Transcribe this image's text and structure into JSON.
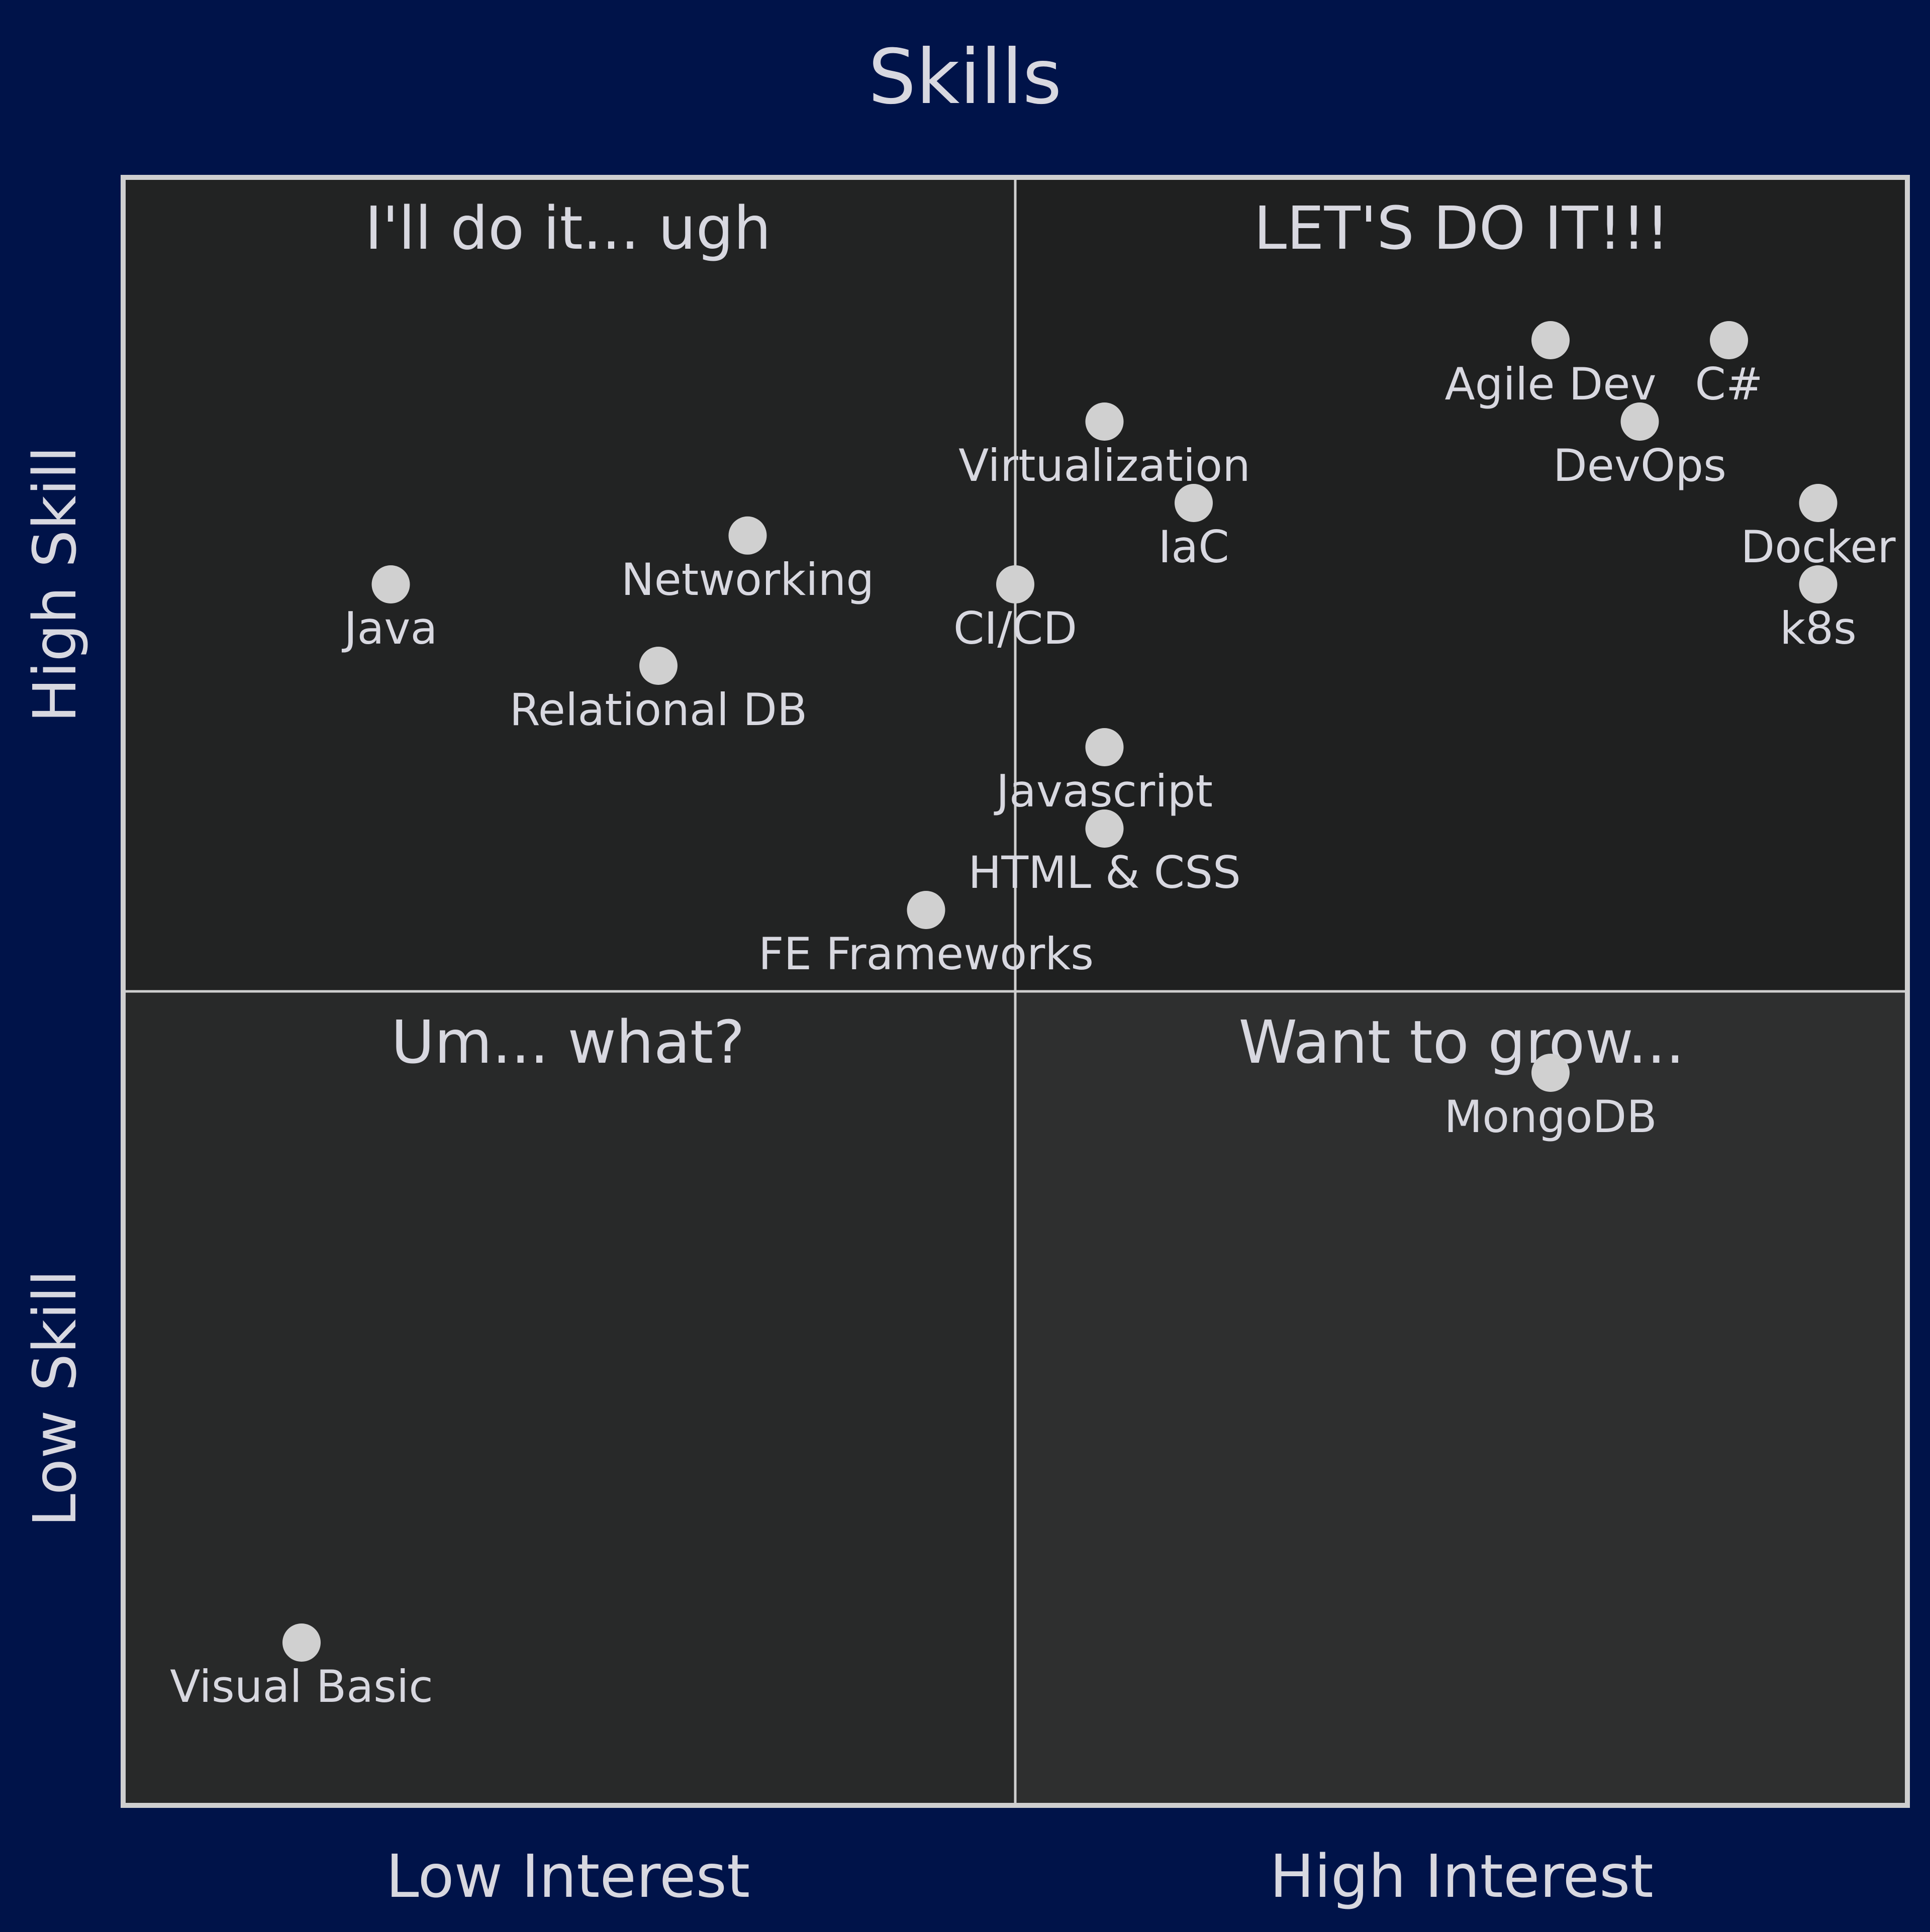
{
  "colors": {
    "background": "#001349",
    "frame": "#cfcfcf",
    "point": "#d0d0d0",
    "text": "#d8d8e0",
    "quadrant_top_left": "#222323",
    "quadrant_top_right": "#1f2020",
    "quadrant_bottom_left": "#282929",
    "quadrant_bottom_right": "#2e2f2f"
  },
  "chart_data": {
    "type": "scatter",
    "title": "Skills",
    "xlabel_low": "Low Interest",
    "xlabel_high": "High Interest",
    "ylabel_low": "Low Skill",
    "ylabel_high": "High Skill",
    "xlim": [
      0,
      10
    ],
    "ylim": [
      0,
      10
    ],
    "grid": false,
    "quadrants": {
      "top_left": "I'll do it... ugh",
      "top_right": "LET'S DO IT!!!",
      "bottom_left": "Um... what?",
      "bottom_right": "Want to grow..."
    },
    "points": [
      {
        "label": "Agile Dev",
        "x": 8.0,
        "y": 9.0
      },
      {
        "label": "C#",
        "x": 9.0,
        "y": 9.0
      },
      {
        "label": "DevOps",
        "x": 8.5,
        "y": 8.5
      },
      {
        "label": "Virtualization",
        "x": 5.5,
        "y": 8.5
      },
      {
        "label": "IaC",
        "x": 6.0,
        "y": 8.0
      },
      {
        "label": "Docker",
        "x": 9.5,
        "y": 8.0
      },
      {
        "label": "k8s",
        "x": 9.5,
        "y": 7.5
      },
      {
        "label": "Networking",
        "x": 3.5,
        "y": 7.8
      },
      {
        "label": "Java",
        "x": 1.5,
        "y": 7.5
      },
      {
        "label": "CI/CD",
        "x": 5.0,
        "y": 7.5
      },
      {
        "label": "Relational DB",
        "x": 3.0,
        "y": 7.0
      },
      {
        "label": "Javascript",
        "x": 5.5,
        "y": 6.5
      },
      {
        "label": "HTML & CSS",
        "x": 5.5,
        "y": 6.0
      },
      {
        "label": "FE Frameworks",
        "x": 4.5,
        "y": 5.5
      },
      {
        "label": "MongoDB",
        "x": 8.0,
        "y": 4.5
      },
      {
        "label": "Visual Basic",
        "x": 1.0,
        "y": 1.0
      }
    ]
  }
}
